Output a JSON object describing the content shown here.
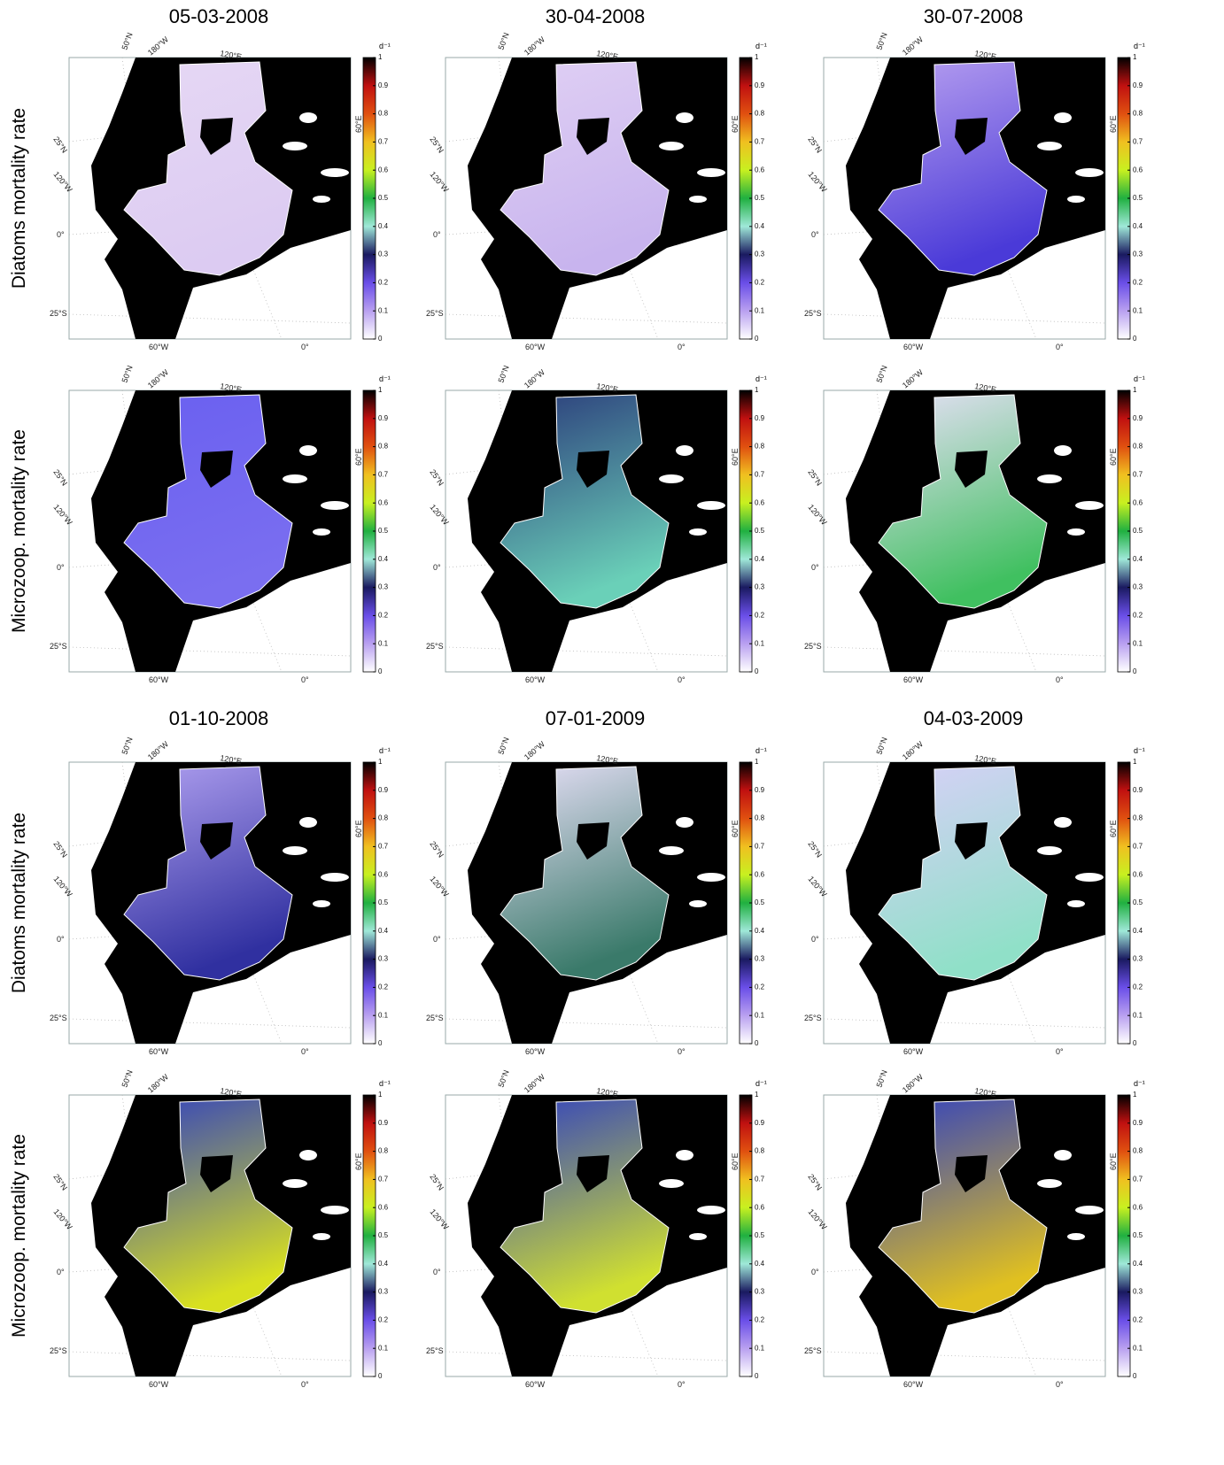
{
  "groups": [
    {
      "dates": [
        "05-03-2008",
        "30-04-2008",
        "30-07-2008"
      ],
      "rows": [
        "Diatoms mortality rate",
        "Microzoop.  mortality rate"
      ]
    },
    {
      "dates": [
        "01-10-2008",
        "07-01-2009",
        "04-03-2009"
      ],
      "rows": [
        "Diatoms mortality rate",
        "Microzoop.  mortality rate"
      ]
    }
  ],
  "map_labels": {
    "lat": [
      "50°N",
      "25°N",
      "25°S"
    ],
    "lon_top": [
      "180°W",
      "120°E"
    ],
    "lon_left": [
      "120°W",
      "0°"
    ],
    "lon_bottom": [
      "60°W",
      "0°"
    ],
    "lon_right": "60°E"
  },
  "colorbar": {
    "unit": "d⁻¹",
    "ticks": [
      0,
      0.1,
      0.2,
      0.3,
      0.4,
      0.5,
      0.6,
      0.7,
      0.8,
      0.9,
      1
    ],
    "colors": [
      "#ffffff",
      "#b9a0f0",
      "#6a4ee8",
      "#1a1a60",
      "#9fe8d8",
      "#20b040",
      "#c8f020",
      "#f0c020",
      "#e05010",
      "#c01010",
      "#000000"
    ]
  }
}
